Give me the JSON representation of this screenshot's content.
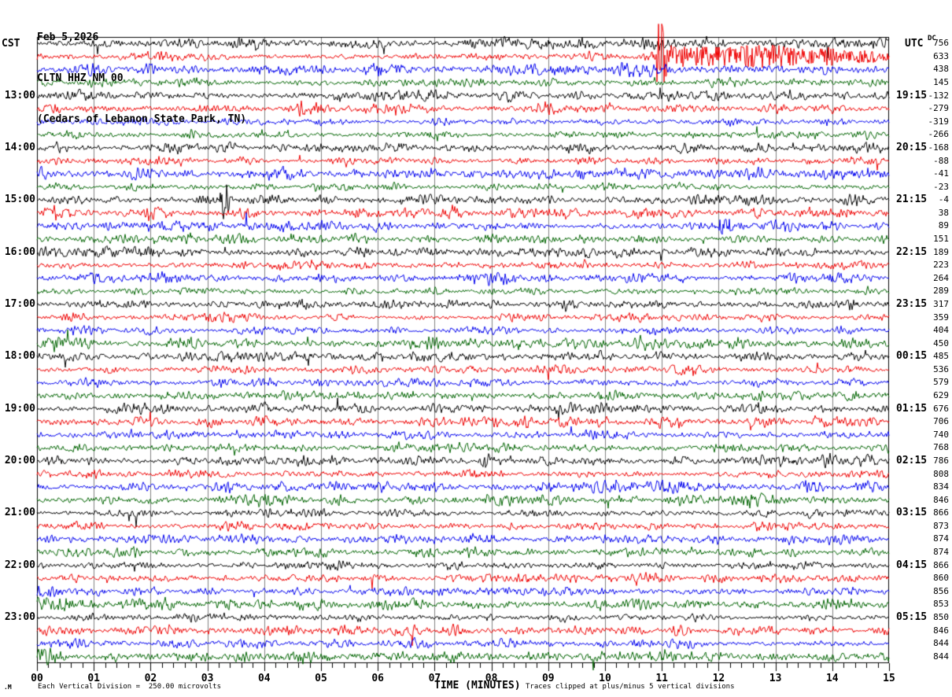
{
  "header": {
    "date": "Feb 5,2026",
    "station": "CLTN HHZ NM 00",
    "location": "(Cedars of Lebanon State Park, TN)"
  },
  "timezones": {
    "left": "CST",
    "right": "UTC"
  },
  "footer": {
    "watermark": ".M",
    "scale_note": "Each Vertical Division =  250.00 microvolts",
    "time_axis_label": "TIME (MINUTES)",
    "clip_note": "Traces clipped at plus/minus 5 vertical divisions"
  },
  "chart_data": {
    "type": "line",
    "subtype": "helicorder",
    "title": "CLTN HHZ NM 00 (Cedars of Lebanon State Park, TN) Feb 5,2026",
    "xlabel": "TIME (MINUTES)",
    "minutes_per_row": 15,
    "num_rows": 48,
    "grid": true,
    "x_tick_labels": [
      "00",
      "01",
      "02",
      "03",
      "04",
      "05",
      "06",
      "07",
      "08",
      "09",
      "10",
      "11",
      "12",
      "13",
      "14",
      "15"
    ],
    "dc_label": "DC",
    "row_colors_cycle": [
      "#000000",
      "#ee0000",
      "#0000ee",
      "#006400"
    ],
    "grid_color": "#808080",
    "left_hour_labels": [
      {
        "row": 4,
        "label": "13:00"
      },
      {
        "row": 8,
        "label": "14:00"
      },
      {
        "row": 12,
        "label": "15:00"
      },
      {
        "row": 16,
        "label": "16:00"
      },
      {
        "row": 20,
        "label": "17:00"
      },
      {
        "row": 24,
        "label": "18:00"
      },
      {
        "row": 28,
        "label": "19:00"
      },
      {
        "row": 32,
        "label": "20:00"
      },
      {
        "row": 36,
        "label": "21:00"
      },
      {
        "row": 40,
        "label": "22:00"
      },
      {
        "row": 44,
        "label": "23:00"
      }
    ],
    "right_hour_labels": [
      {
        "row": 4,
        "label": "19:15"
      },
      {
        "row": 8,
        "label": "20:15"
      },
      {
        "row": 12,
        "label": "21:15"
      },
      {
        "row": 16,
        "label": "22:15"
      },
      {
        "row": 20,
        "label": "23:15"
      },
      {
        "row": 24,
        "label": "00:15"
      },
      {
        "row": 28,
        "label": "01:15"
      },
      {
        "row": 32,
        "label": "02:15"
      },
      {
        "row": 36,
        "label": "03:15"
      },
      {
        "row": 40,
        "label": "04:15"
      },
      {
        "row": 44,
        "label": "05:15"
      }
    ],
    "dc_offsets": [
      756,
      633,
      438,
      145,
      -132,
      -279,
      -319,
      -266,
      -168,
      -88,
      -41,
      -23,
      -4,
      38,
      89,
      151,
      189,
      223,
      264,
      289,
      317,
      359,
      404,
      450,
      485,
      536,
      579,
      629,
      676,
      706,
      740,
      768,
      786,
      808,
      834,
      846,
      866,
      873,
      874,
      874,
      866,
      860,
      856,
      853,
      850,
      846,
      844,
      844
    ],
    "clip_divisions": 5,
    "noise_base_divisions": 0.6,
    "events": [
      {
        "row": 1,
        "kind": "spike",
        "start_min": 10.85,
        "end_min": 11.15,
        "amp_div": 7.0
      },
      {
        "row": 1,
        "kind": "coda",
        "start_min": 11.15,
        "end_min": 15.0,
        "amp_div": 2.4
      },
      {
        "row": 12,
        "kind": "spike",
        "start_min": 3.18,
        "end_min": 3.42,
        "amp_div": 3.6
      },
      {
        "row": 14,
        "kind": "burst",
        "start_min": 11.9,
        "end_min": 12.3,
        "amp_div": 1.4
      }
    ]
  }
}
